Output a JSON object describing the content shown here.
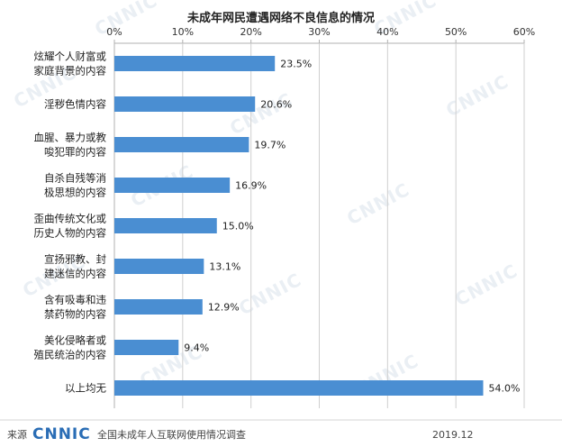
{
  "chart_data": {
    "type": "bar",
    "orientation": "horizontal",
    "title": "未成年网民遭遇网络不良信息的情况",
    "categories": [
      [
        "炫耀个人财富或",
        "家庭背景的内容"
      ],
      [
        "淫秽色情内容"
      ],
      [
        "血腥、暴力或教",
        "唆犯罪的内容"
      ],
      [
        "自杀自残等消",
        "极思想的内容"
      ],
      [
        "歪曲传统文化或",
        "历史人物的内容"
      ],
      [
        "宣扬邪教、封",
        "建迷信的内容"
      ],
      [
        "含有吸毒和违",
        "禁药物的内容"
      ],
      [
        "美化侵略者或",
        "殖民统治的内容"
      ],
      [
        "以上均无"
      ]
    ],
    "values": [
      23.5,
      20.6,
      19.7,
      16.9,
      15.0,
      13.1,
      12.9,
      9.4,
      54.0
    ],
    "value_labels": [
      "23.5%",
      "20.6%",
      "19.7%",
      "16.9%",
      "15.0%",
      "13.1%",
      "12.9%",
      "9.4%",
      "54.0%"
    ],
    "xlim": [
      0,
      60
    ],
    "ticks": [
      0,
      10,
      20,
      30,
      40,
      50,
      60
    ],
    "tick_labels": [
      "0%",
      "10%",
      "20%",
      "30%",
      "40%",
      "50%",
      "60%"
    ],
    "axis_position": "top",
    "grid": true,
    "bar_color": "#4a8ed2"
  },
  "footer": {
    "source_label": "来源",
    "logo_text": "CNNIC",
    "survey_name": "全国未成年人互联网使用情况调查",
    "date": "2019.12"
  },
  "watermark": "CNNIC"
}
